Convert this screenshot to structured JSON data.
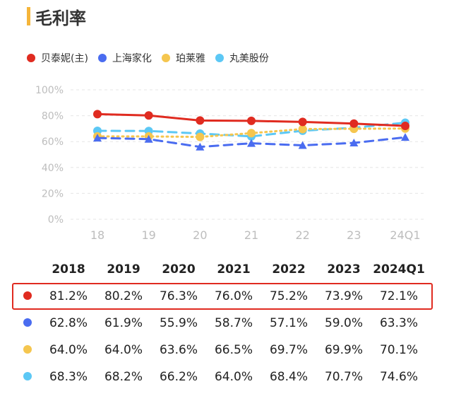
{
  "title": "毛利率",
  "colors": {
    "title_accent": "#f5b53a",
    "highlight": "#e02b20",
    "axis_text": "#bdbdbd",
    "grid": "#e6e6e6"
  },
  "chart_data": {
    "type": "line",
    "categories": [
      "18",
      "19",
      "20",
      "21",
      "22",
      "23",
      "24Q1"
    ],
    "yticks": [
      "0%",
      "20%",
      "40%",
      "60%",
      "80%",
      "100%"
    ],
    "ylim": [
      0,
      100
    ],
    "legend_position": "top-left",
    "series": [
      {
        "name": "贝泰妮(主)",
        "color": "#e02b20",
        "dash": "solid",
        "values": [
          81.2,
          80.2,
          76.3,
          76.0,
          75.2,
          73.9,
          72.1
        ]
      },
      {
        "name": "上海家化",
        "color": "#4a6cf0",
        "dash": "dashed",
        "values": [
          62.8,
          61.9,
          55.9,
          58.7,
          57.1,
          59.0,
          63.3
        ]
      },
      {
        "name": "珀莱雅",
        "color": "#f5c64f",
        "dash": "dotted",
        "values": [
          64.0,
          64.0,
          63.6,
          66.5,
          69.7,
          69.9,
          70.1
        ]
      },
      {
        "name": "丸美股份",
        "color": "#5cc8f5",
        "dash": "dashed",
        "values": [
          68.3,
          68.2,
          66.2,
          64.0,
          68.4,
          70.7,
          74.6
        ]
      }
    ]
  },
  "table": {
    "headers": [
      "2018",
      "2019",
      "2020",
      "2021",
      "2022",
      "2023",
      "2024Q1"
    ],
    "rows": [
      [
        "81.2%",
        "80.2%",
        "76.3%",
        "76.0%",
        "75.2%",
        "73.9%",
        "72.1%"
      ],
      [
        "62.8%",
        "61.9%",
        "55.9%",
        "58.7%",
        "57.1%",
        "59.0%",
        "63.3%"
      ],
      [
        "64.0%",
        "64.0%",
        "63.6%",
        "66.5%",
        "69.7%",
        "69.9%",
        "70.1%"
      ],
      [
        "68.3%",
        "68.2%",
        "66.2%",
        "64.0%",
        "68.4%",
        "70.7%",
        "74.6%"
      ]
    ]
  }
}
